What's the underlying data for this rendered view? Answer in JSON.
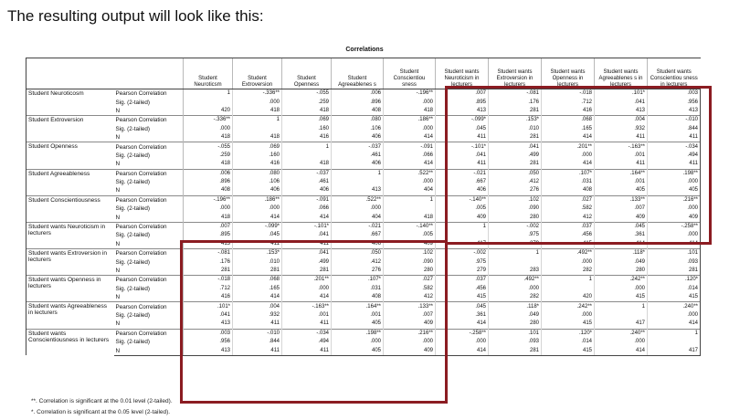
{
  "heading": "The resulting output will look like this:",
  "table_title": "Correlations",
  "columns": [
    "Student Neuroticsm",
    "Student Extroversion",
    "Student Openness",
    "Student Agreeablenes s",
    "Student Conscientiou sness",
    "Student wants Neuroticism in lecturers",
    "Student wants Extroversion in lecturers",
    "Student wants Openness in lecturers",
    "Student wants Agreeablenes s in lecturers",
    "Student wants Conscientiou sness in lecturers"
  ],
  "stat_labels": [
    "Pearson Correlation",
    "Sig. (2-tailed)",
    "N"
  ],
  "groups": [
    {
      "label": "Student Neuroticosm",
      "rows": [
        [
          "1",
          "-.336**",
          "-.055",
          ".006",
          "-.196**",
          ".007",
          "-.081",
          "-.018",
          ".101*",
          ".003"
        ],
        [
          "",
          ".000",
          ".259",
          ".896",
          ".000",
          ".895",
          ".176",
          ".712",
          ".041",
          ".956"
        ],
        [
          "420",
          "418",
          "418",
          "408",
          "418",
          "413",
          "281",
          "416",
          "413",
          "413"
        ]
      ]
    },
    {
      "label": "Student Extroversion",
      "rows": [
        [
          "-.336**",
          "1",
          ".069",
          ".080",
          ".186**",
          "-.099*",
          ".153*",
          ".068",
          ".004",
          "-.010"
        ],
        [
          ".000",
          "",
          ".160",
          ".106",
          ".000",
          ".045",
          ".010",
          ".165",
          ".932",
          ".844"
        ],
        [
          "418",
          "418",
          "416",
          "406",
          "414",
          "411",
          "281",
          "414",
          "411",
          "411"
        ]
      ]
    },
    {
      "label": "Student Openness",
      "rows": [
        [
          "-.055",
          ".069",
          "1",
          "-.037",
          "-.091",
          "-.101*",
          ".041",
          ".201**",
          "-.163**",
          "-.034"
        ],
        [
          ".259",
          ".160",
          "",
          ".461",
          ".066",
          ".041",
          ".499",
          ".000",
          ".001",
          ".494"
        ],
        [
          "418",
          "416",
          "418",
          "406",
          "414",
          "411",
          "281",
          "414",
          "411",
          "411"
        ]
      ]
    },
    {
      "label": "Student Agreeableness",
      "rows": [
        [
          ".006",
          ".080",
          "-.037",
          "1",
          ".522**",
          "-.021",
          ".050",
          ".107*",
          ".164**",
          ".198**"
        ],
        [
          ".896",
          ".106",
          ".461",
          "",
          ".000",
          ".667",
          ".412",
          ".031",
          ".001",
          ".000"
        ],
        [
          "408",
          "406",
          "406",
          "413",
          "404",
          "406",
          "276",
          "408",
          "405",
          "405"
        ]
      ]
    },
    {
      "label": "Student Conscientiousness",
      "rows": [
        [
          "-.196**",
          ".186**",
          "-.091",
          ".522**",
          "1",
          "-.140**",
          ".102",
          ".027",
          ".133**",
          ".216**"
        ],
        [
          ".000",
          ".000",
          ".066",
          ".000",
          "",
          ".005",
          ".090",
          ".582",
          ".007",
          ".000"
        ],
        [
          "418",
          "414",
          "414",
          "404",
          "418",
          "409",
          "280",
          "412",
          "409",
          "409"
        ]
      ]
    },
    {
      "label": "Student wants Neuroticism in lecturers",
      "rows": [
        [
          ".007",
          "-.099*",
          "-.101*",
          "-.021",
          "-.140**",
          "1",
          "-.002",
          ".037",
          ".045",
          "-.258**"
        ],
        [
          ".895",
          ".045",
          ".041",
          ".667",
          ".005",
          "",
          ".975",
          ".456",
          ".361",
          ".000"
        ],
        [
          "413",
          "411",
          "411",
          "406",
          "409",
          "417",
          "279",
          "415",
          "414",
          "414"
        ]
      ]
    },
    {
      "label": "Student wants Extroversion in lecturers",
      "rows": [
        [
          "-.081",
          ".153*",
          ".041",
          ".050",
          ".102",
          "-.002",
          "1",
          ".492**",
          ".118*",
          ".101"
        ],
        [
          ".176",
          ".010",
          ".499",
          ".412",
          ".090",
          ".975",
          "",
          ".000",
          ".049",
          ".093"
        ],
        [
          "281",
          "281",
          "281",
          "276",
          "280",
          "279",
          "283",
          "282",
          "280",
          "281"
        ]
      ]
    },
    {
      "label": "Student wants Openness in lecturers",
      "rows": [
        [
          "-.018",
          ".068",
          ".201**",
          ".107*",
          ".027",
          ".037",
          ".492**",
          "1",
          ".242**",
          ".120*"
        ],
        [
          ".712",
          ".165",
          ".000",
          ".031",
          ".582",
          ".456",
          ".000",
          "",
          ".000",
          ".014"
        ],
        [
          "416",
          "414",
          "414",
          "408",
          "412",
          "415",
          "282",
          "420",
          "415",
          "415"
        ]
      ]
    },
    {
      "label": "Student wants Agreeableness in lecturers",
      "rows": [
        [
          ".101*",
          ".004",
          "-.163**",
          ".164**",
          ".133**",
          ".045",
          ".118*",
          ".242**",
          "1",
          ".240**"
        ],
        [
          ".041",
          ".932",
          ".001",
          ".001",
          ".007",
          ".361",
          ".049",
          ".000",
          "",
          ".000"
        ],
        [
          "413",
          "411",
          "411",
          "405",
          "409",
          "414",
          "280",
          "415",
          "417",
          "414"
        ]
      ]
    },
    {
      "label": "Student wants Conscientiousness in lecturers",
      "rows": [
        [
          ".003",
          "-.010",
          "-.034",
          ".198**",
          ".216**",
          "-.258**",
          ".101",
          ".120*",
          ".240**",
          "1"
        ],
        [
          ".956",
          ".844",
          ".494",
          ".000",
          ".000",
          ".000",
          ".093",
          ".014",
          ".000",
          ""
        ],
        [
          "413",
          "411",
          "411",
          "405",
          "409",
          "414",
          "281",
          "415",
          "414",
          "417"
        ]
      ]
    }
  ],
  "footnotes": [
    "**. Correlation is significant at the 0.01 level (2-tailed).",
    "*. Correlation is significant at the 0.05 level (2-tailed)."
  ],
  "colors": {
    "highlight_box": "#8b1c22"
  }
}
